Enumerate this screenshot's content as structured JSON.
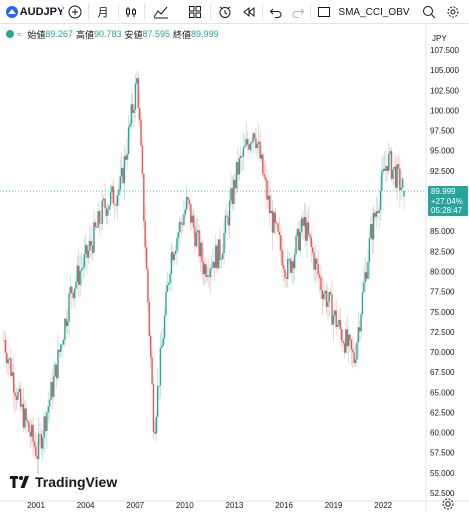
{
  "toolbar": {
    "symbol": "AUDJPY",
    "interval": "月",
    "indicators": "SMA_CCI_OBV",
    "icons": [
      "symbol-logo-icon",
      "add-compare-icon",
      "bar-style-icon",
      "indicators-icon",
      "templates-icon",
      "alert-icon",
      "replay-icon",
      "undo-icon",
      "redo-icon",
      "layout-icon",
      "search-icon",
      "settings-icon"
    ]
  },
  "legend": {
    "open_label": "始値",
    "open_value": "89.267",
    "high_label": "高値",
    "high_value": "90.783",
    "low_label": "安値",
    "low_value": "87.595",
    "close_label": "終値",
    "close_value": "89.999"
  },
  "price_scale": {
    "currency": "JPY",
    "ticks": [
      "107.500",
      "105.000",
      "102.500",
      "100.000",
      "97.500",
      "95.000",
      "92.500",
      "90.000",
      "87.500",
      "85.000",
      "82.500",
      "80.000",
      "77.500",
      "75.000",
      "72.500",
      "70.000",
      "67.500",
      "65.000",
      "62.500",
      "60.000",
      "57.500",
      "55.000",
      "52.500"
    ],
    "current_price": "89.999",
    "change": "+27.04%",
    "countdown": "05:28:47"
  },
  "time_scale": {
    "ticks": [
      "2001",
      "2004",
      "2007",
      "2010",
      "2013",
      "2016",
      "2019",
      "2022"
    ]
  },
  "branding": {
    "name": "TradingView"
  },
  "colors": {
    "up": "#26a69a",
    "down": "#ef5350",
    "accent": "#2962ff"
  },
  "chart_data": {
    "type": "candlestick",
    "interval": "monthly",
    "ylim": [
      52.5,
      107.5
    ],
    "x": [
      "1999",
      "2000",
      "2001",
      "2002",
      "2003",
      "2004",
      "2005",
      "2006",
      "2007",
      "2008",
      "2009",
      "2010",
      "2011",
      "2012",
      "2013",
      "2014",
      "2015",
      "2016",
      "2017",
      "2018",
      "2019",
      "2020",
      "2021",
      "2022",
      "2023"
    ],
    "closes": [
      71.5,
      63.0,
      57.5,
      66.5,
      77.5,
      82.0,
      88.0,
      90.5,
      104.0,
      60.5,
      82.0,
      88.5,
      80.5,
      82.5,
      92.5,
      98.0,
      87.0,
      80.0,
      86.0,
      78.5,
      73.5,
      69.0,
      84.5,
      94.0,
      89.999
    ],
    "last": {
      "open": 89.267,
      "high": 90.783,
      "low": 87.595,
      "close": 89.999
    }
  }
}
